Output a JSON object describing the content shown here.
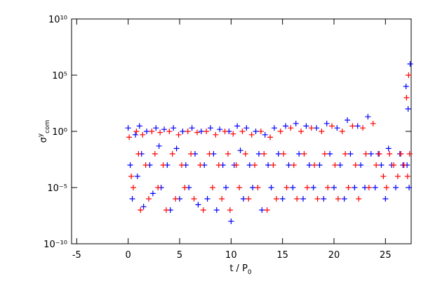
{
  "chart_data": {
    "type": "scatter",
    "xlabel": [
      "t / P",
      "0"
    ],
    "ylabel": [
      "σ",
      "y",
      "com"
    ],
    "xlim": [
      -5.5,
      27.5
    ],
    "xticks": [
      -5,
      0,
      5,
      10,
      15,
      20,
      25
    ],
    "ylim": [
      1e-10,
      10000000000.0
    ],
    "log_y": true,
    "yticks": [
      {
        "value": 1e-10,
        "label": "10⁻¹⁰"
      },
      {
        "value": 1e-05,
        "label": "10⁻⁵"
      },
      {
        "value": 1,
        "label": "10⁰"
      },
      {
        "value": 100000.0,
        "label": "10⁵"
      },
      {
        "value": 10000000000.0,
        "label": "10¹⁰"
      }
    ],
    "marker": "+",
    "series": [
      {
        "color": "#0000ff",
        "x": [
          0,
          0.2,
          0.4,
          0.7,
          0.9,
          1.1,
          1.3,
          1.5,
          1.8,
          2.1,
          2.4,
          2.7,
          3,
          3.2,
          3.5,
          3.8,
          4.1,
          4.4,
          4.7,
          5,
          5.3,
          5.6,
          5.9,
          6.2,
          6.5,
          6.8,
          7.1,
          7.4,
          7.7,
          8,
          8.3,
          8.6,
          8.9,
          9.2,
          9.5,
          9.8,
          10,
          10.3,
          10.6,
          10.9,
          11.2,
          11.5,
          11.8,
          12.1,
          12.4,
          12.7,
          13,
          13.3,
          13.6,
          13.9,
          14.2,
          14.6,
          15,
          15.3,
          15.6,
          16,
          16.3,
          16.6,
          17,
          17.3,
          17.6,
          18,
          18.3,
          18.6,
          19,
          19.3,
          19.6,
          20,
          20.3,
          20.6,
          21,
          21.3,
          21.6,
          22,
          22.3,
          22.6,
          23,
          23.3,
          23.6,
          24,
          24.3,
          24.6,
          25,
          25.3,
          25.6,
          26,
          26.4,
          26.7,
          27,
          27.2,
          27.4,
          27.1,
          27.3
        ],
        "values": [
          2,
          0.001,
          1e-06,
          0.5,
          0.0001,
          3,
          0.01,
          2e-07,
          1,
          0.001,
          3e-06,
          2,
          0.05,
          1e-05,
          1.5,
          0.001,
          1e-07,
          2,
          0.03,
          1e-06,
          1,
          0.001,
          1e-05,
          2,
          0.01,
          3e-07,
          1,
          0.001,
          1e-06,
          2,
          0.01,
          1e-07,
          1.5,
          0.001,
          1e-05,
          1,
          1e-08,
          0.001,
          3,
          0.02,
          1e-06,
          2,
          0.001,
          1e-05,
          1,
          0.01,
          1e-07,
          0.5,
          0.001,
          1e-05,
          2,
          0.01,
          1e-06,
          3,
          0.001,
          1e-05,
          5,
          0.01,
          1e-06,
          3,
          0.001,
          1e-05,
          2,
          0.001,
          1e-06,
          5,
          0.01,
          1e-05,
          2,
          0.001,
          1e-06,
          10,
          0.01,
          1e-05,
          3,
          0.001,
          1e-05,
          20,
          0.01,
          1e-05,
          0.01,
          0.001,
          1e-06,
          0.03,
          0.001,
          1e-05,
          0.01,
          0.001,
          10000.0,
          100.0,
          1000000.0,
          0.001,
          1e-05
        ]
      },
      {
        "color": "#ff0000",
        "x": [
          0.1,
          0.3,
          0.5,
          0.8,
          1,
          1.2,
          1.4,
          1.7,
          2,
          2.3,
          2.6,
          2.9,
          3.1,
          3.4,
          3.7,
          4,
          4.3,
          4.6,
          4.9,
          5.2,
          5.5,
          5.8,
          6.1,
          6.4,
          6.7,
          7,
          7.3,
          7.6,
          7.9,
          8.2,
          8.5,
          8.8,
          9.1,
          9.4,
          9.7,
          9.9,
          10.2,
          10.5,
          10.8,
          11.1,
          11.4,
          11.7,
          12,
          12.3,
          12.6,
          12.9,
          13.2,
          13.5,
          13.8,
          14.1,
          14.4,
          14.8,
          15.1,
          15.4,
          15.8,
          16.1,
          16.4,
          16.8,
          17.1,
          17.4,
          17.8,
          18.1,
          18.4,
          18.8,
          19.1,
          19.4,
          19.8,
          20.1,
          20.4,
          20.8,
          21.1,
          21.4,
          21.8,
          22.1,
          22.4,
          22.8,
          23.1,
          23.4,
          23.8,
          24.1,
          24.4,
          24.8,
          25.1,
          25.4,
          25.8,
          26.2,
          26.5,
          26.8,
          27.05,
          27.25,
          27.35,
          27.15
        ],
        "values": [
          0.3,
          0.0001,
          1e-05,
          1,
          0.01,
          1e-07,
          0.5,
          0.001,
          1e-06,
          1,
          0.01,
          1e-05,
          0.8,
          0.001,
          1e-07,
          1,
          0.01,
          1e-06,
          0.5,
          0.001,
          1e-05,
          1,
          0.01,
          1e-06,
          0.8,
          0.001,
          1e-07,
          1,
          0.01,
          1e-05,
          0.5,
          0.001,
          1e-06,
          1,
          0.01,
          1e-07,
          0.6,
          0.001,
          1e-05,
          1,
          0.01,
          1e-06,
          0.5,
          0.001,
          1e-05,
          1,
          0.01,
          1e-07,
          0.3,
          0.001,
          1e-06,
          1,
          0.01,
          1e-05,
          2,
          0.001,
          1e-06,
          1,
          0.01,
          1e-05,
          2,
          0.001,
          1e-06,
          1,
          0.01,
          1e-05,
          3,
          0.001,
          1e-06,
          1,
          0.01,
          1e-05,
          3,
          0.001,
          1e-06,
          2,
          0.01,
          1e-05,
          5,
          0.001,
          0.01,
          0.0001,
          1e-05,
          0.01,
          0.001,
          0.0001,
          0.01,
          0.001,
          1000.0,
          100000.0,
          0.01,
          0.0001
        ]
      }
    ]
  }
}
